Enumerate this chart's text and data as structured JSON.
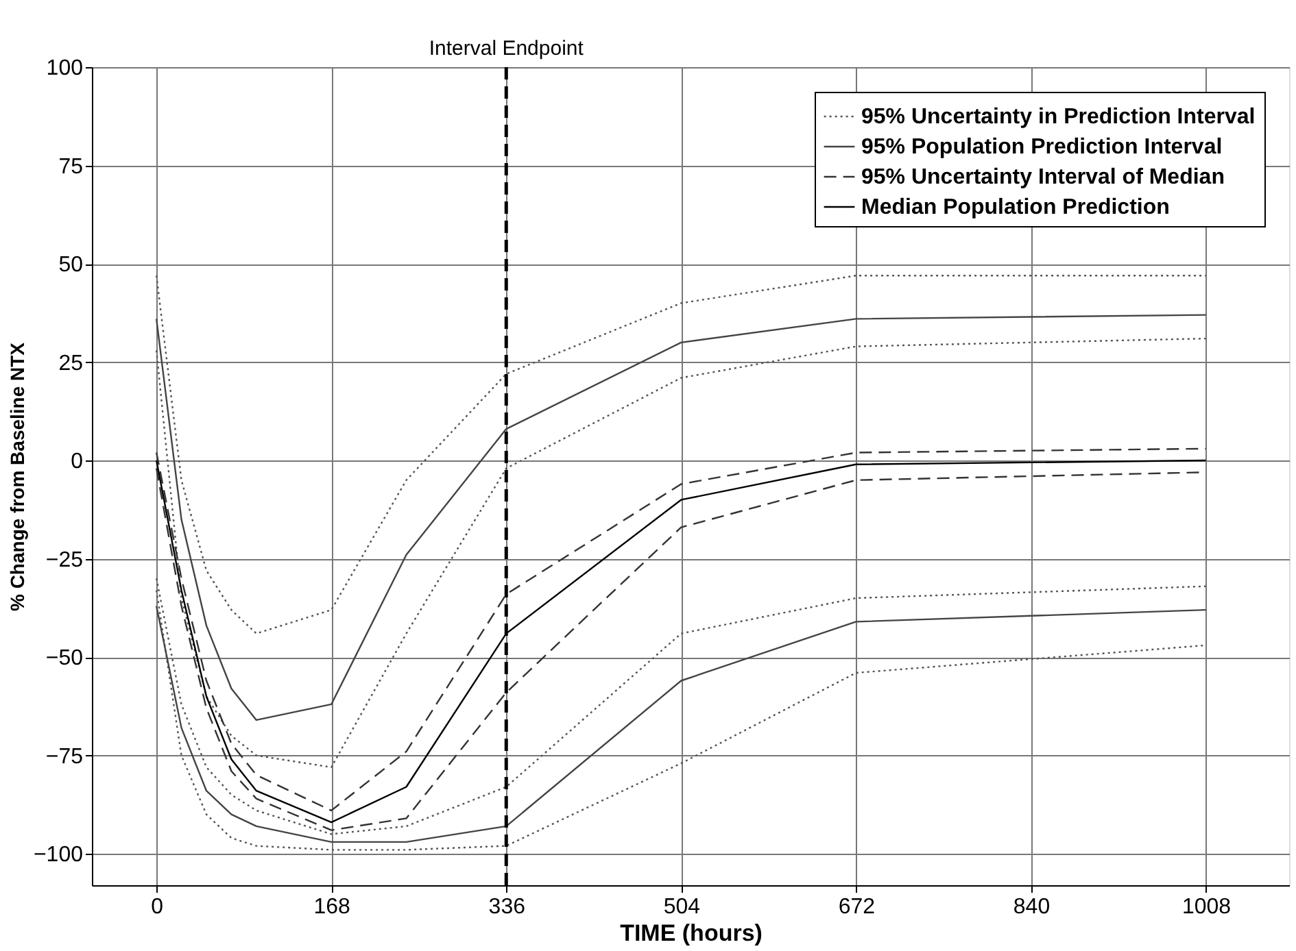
{
  "chart_data": {
    "type": "line",
    "xlabel": "TIME (hours)",
    "ylabel": "% Change from Baseline NTX",
    "xlim": [
      -62,
      1088
    ],
    "ylim": [
      -108,
      100
    ],
    "xticks": [
      0,
      168,
      336,
      504,
      672,
      840,
      1008
    ],
    "yticks": [
      -100,
      -75,
      -50,
      -25,
      0,
      25,
      50,
      75,
      100
    ],
    "grid": true,
    "legend": "top right",
    "marker": "none",
    "ref_lines": [
      {
        "axis": "x",
        "value": 336,
        "label": "Interval Endpoint",
        "line_style": "dashed",
        "color": "#000000"
      }
    ],
    "series": [
      {
        "name": "95% Uncertainty in Prediction Interval",
        "color": "#555555",
        "line_style": "dotted",
        "x": [
          0,
          24,
          48,
          72,
          96,
          168,
          240,
          336,
          504,
          672,
          1008
        ],
        "values": [
          47,
          -5,
          -28,
          -38,
          -44,
          -38,
          -5,
          22,
          40,
          47,
          47
        ]
      },
      {
        "color": "#555555",
        "line_style": "dotted",
        "x": [
          0,
          24,
          48,
          72,
          96,
          168,
          240,
          336,
          504,
          672,
          1008
        ],
        "values": [
          28,
          -35,
          -60,
          -70,
          -75,
          -78,
          -44,
          -2,
          21,
          29,
          31
        ]
      },
      {
        "color": "#555555",
        "line_style": "dotted",
        "x": [
          0,
          24,
          48,
          72,
          96,
          168,
          240,
          336,
          504,
          672,
          1008
        ],
        "values": [
          -30,
          -62,
          -78,
          -85,
          -89,
          -95,
          -93,
          -83,
          -44,
          -35,
          -32
        ]
      },
      {
        "color": "#555555",
        "line_style": "dotted",
        "x": [
          0,
          24,
          48,
          72,
          96,
          168,
          240,
          336,
          504,
          672,
          1008
        ],
        "values": [
          -33,
          -75,
          -90,
          -96,
          -98,
          -99,
          -99,
          -98,
          -77,
          -54,
          -47
        ]
      },
      {
        "name": "95% Population Prediction Interval",
        "color": "#444444",
        "line_style": "solid",
        "x": [
          0,
          24,
          48,
          72,
          96,
          168,
          240,
          336,
          504,
          672,
          1008
        ],
        "values": [
          36,
          -15,
          -42,
          -58,
          -66,
          -62,
          -24,
          8,
          30,
          36,
          37
        ]
      },
      {
        "color": "#444444",
        "line_style": "solid",
        "x": [
          0,
          24,
          48,
          72,
          96,
          168,
          240,
          336,
          504,
          672,
          1008
        ],
        "values": [
          -37,
          -68,
          -84,
          -90,
          -93,
          -97,
          -97,
          -93,
          -56,
          -41,
          -38
        ]
      },
      {
        "name": "95% Uncertainty Interval of Median",
        "color": "#333333",
        "line_style": "dashed",
        "x": [
          0,
          24,
          48,
          72,
          96,
          168,
          240,
          336,
          504,
          672,
          1008
        ],
        "values": [
          2,
          -30,
          -56,
          -72,
          -80,
          -89,
          -74,
          -34,
          -6,
          2,
          3
        ]
      },
      {
        "color": "#333333",
        "line_style": "dashed",
        "x": [
          0,
          24,
          48,
          72,
          96,
          168,
          240,
          336,
          504,
          672,
          1008
        ],
        "values": [
          -2,
          -37,
          -63,
          -79,
          -86,
          -94,
          -91,
          -59,
          -17,
          -5,
          -3
        ]
      },
      {
        "name": "Median Population Prediction",
        "color": "#000000",
        "line_style": "solid",
        "x": [
          0,
          24,
          48,
          72,
          96,
          168,
          240,
          336,
          504,
          672,
          1008
        ],
        "values": [
          0,
          -33,
          -60,
          -76,
          -84,
          -92,
          -83,
          -44,
          -10,
          -1,
          0
        ]
      }
    ]
  }
}
